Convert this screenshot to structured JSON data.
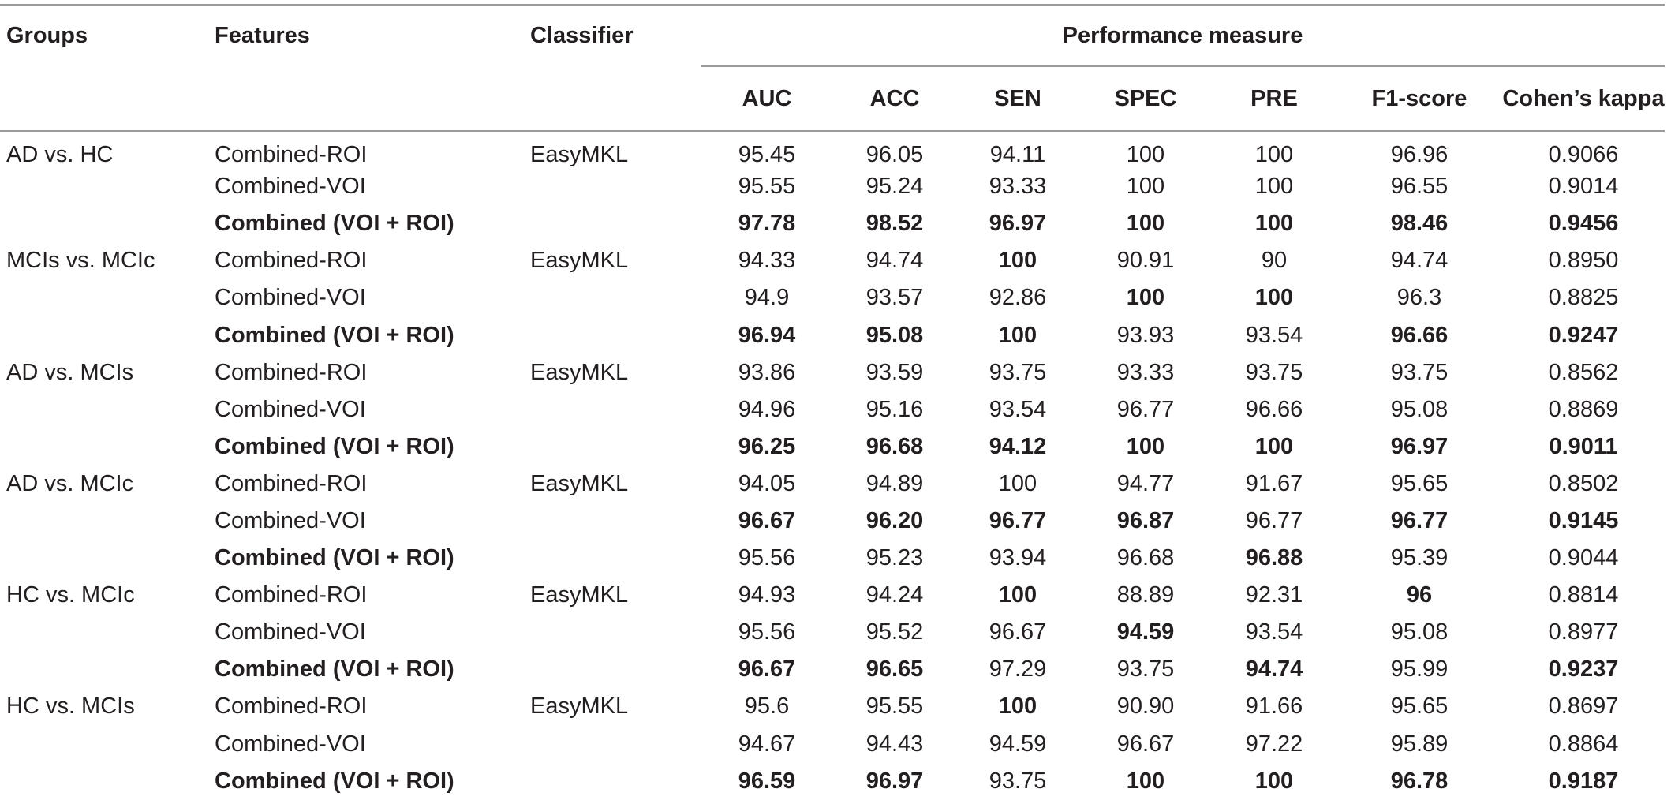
{
  "headers": {
    "groups": "Groups",
    "features": "Features",
    "classifier": "Classifier",
    "performance": "Performance measure",
    "metrics": [
      "AUC",
      "ACC",
      "SEN",
      "SPEC",
      "PRE",
      "F1-score",
      "Cohen’s kappa"
    ]
  },
  "rows": [
    {
      "group": "AD vs. HC",
      "feature": "Combined-ROI",
      "classifier": "EasyMKL",
      "fbold": false,
      "values": [
        "95.45",
        "96.05",
        "94.11",
        "100",
        "100",
        "96.96",
        "0.9066"
      ],
      "bold": [
        false,
        false,
        false,
        false,
        false,
        false,
        false
      ]
    },
    {
      "group": "",
      "feature": "Combined-VOI",
      "classifier": "",
      "fbold": false,
      "values": [
        "95.55",
        "95.24",
        "93.33",
        "100",
        "100",
        "96.55",
        "0.9014"
      ],
      "bold": [
        false,
        false,
        false,
        false,
        false,
        false,
        false
      ]
    },
    {
      "group": "",
      "feature": "Combined (VOI + ROI)",
      "classifier": "",
      "fbold": true,
      "values": [
        "97.78",
        "98.52",
        "96.97",
        "100",
        "100",
        "98.46",
        "0.9456"
      ],
      "bold": [
        true,
        true,
        true,
        true,
        true,
        true,
        true
      ]
    },
    {
      "group": "MCIs vs. MCIc",
      "feature": "Combined-ROI",
      "classifier": "EasyMKL",
      "fbold": false,
      "values": [
        "94.33",
        "94.74",
        "100",
        "90.91",
        "90",
        "94.74",
        "0.8950"
      ],
      "bold": [
        false,
        false,
        true,
        false,
        false,
        false,
        false
      ]
    },
    {
      "group": "",
      "feature": "Combined-VOI",
      "classifier": "",
      "fbold": false,
      "values": [
        "94.9",
        "93.57",
        "92.86",
        "100",
        "100",
        "96.3",
        "0.8825"
      ],
      "bold": [
        false,
        false,
        false,
        true,
        true,
        false,
        false
      ]
    },
    {
      "group": "",
      "feature": "Combined (VOI + ROI)",
      "classifier": "",
      "fbold": true,
      "values": [
        "96.94",
        "95.08",
        "100",
        "93.93",
        "93.54",
        "96.66",
        "0.9247"
      ],
      "bold": [
        true,
        true,
        true,
        false,
        false,
        true,
        true
      ]
    },
    {
      "group": "AD vs. MCIs",
      "feature": "Combined-ROI",
      "classifier": "EasyMKL",
      "fbold": false,
      "values": [
        "93.86",
        "93.59",
        "93.75",
        "93.33",
        "93.75",
        "93.75",
        "0.8562"
      ],
      "bold": [
        false,
        false,
        false,
        false,
        false,
        false,
        false
      ]
    },
    {
      "group": "",
      "feature": "Combined-VOI",
      "classifier": "",
      "fbold": false,
      "values": [
        "94.96",
        "95.16",
        "93.54",
        "96.77",
        "96.66",
        "95.08",
        "0.8869"
      ],
      "bold": [
        false,
        false,
        false,
        false,
        false,
        false,
        false
      ]
    },
    {
      "group": "",
      "feature": "Combined (VOI + ROI)",
      "classifier": "",
      "fbold": true,
      "values": [
        "96.25",
        "96.68",
        "94.12",
        "100",
        "100",
        "96.97",
        "0.9011"
      ],
      "bold": [
        true,
        true,
        true,
        true,
        true,
        true,
        true
      ]
    },
    {
      "group": "AD vs. MCIc",
      "feature": "Combined-ROI",
      "classifier": "EasyMKL",
      "fbold": false,
      "values": [
        "94.05",
        "94.89",
        "100",
        "94.77",
        "91.67",
        "95.65",
        "0.8502"
      ],
      "bold": [
        false,
        false,
        false,
        false,
        false,
        false,
        false
      ]
    },
    {
      "group": "",
      "feature": "Combined-VOI",
      "classifier": "",
      "fbold": false,
      "values": [
        "96.67",
        "96.20",
        "96.77",
        "96.87",
        "96.77",
        "96.77",
        "0.9145"
      ],
      "bold": [
        true,
        true,
        true,
        true,
        false,
        true,
        true
      ]
    },
    {
      "group": "",
      "feature": "Combined (VOI + ROI)",
      "classifier": "",
      "fbold": true,
      "values": [
        "95.56",
        "95.23",
        "93.94",
        "96.68",
        "96.88",
        "95.39",
        "0.9044"
      ],
      "bold": [
        false,
        false,
        false,
        false,
        true,
        false,
        false
      ]
    },
    {
      "group": "HC vs. MCIc",
      "feature": "Combined-ROI",
      "classifier": "EasyMKL",
      "fbold": false,
      "values": [
        "94.93",
        "94.24",
        "100",
        "88.89",
        "92.31",
        "96",
        "0.8814"
      ],
      "bold": [
        false,
        false,
        true,
        false,
        false,
        true,
        false
      ]
    },
    {
      "group": "",
      "feature": "Combined-VOI",
      "classifier": "",
      "fbold": false,
      "values": [
        "95.56",
        "95.52",
        "96.67",
        "94.59",
        "93.54",
        "95.08",
        "0.8977"
      ],
      "bold": [
        false,
        false,
        false,
        true,
        false,
        false,
        false
      ]
    },
    {
      "group": "",
      "feature": "Combined (VOI + ROI)",
      "classifier": "",
      "fbold": true,
      "values": [
        "96.67",
        "96.65",
        "97.29",
        "93.75",
        "94.74",
        "95.99",
        "0.9237"
      ],
      "bold": [
        true,
        true,
        false,
        false,
        true,
        false,
        true
      ]
    },
    {
      "group": "HC vs. MCIs",
      "feature": "Combined-ROI",
      "classifier": "EasyMKL",
      "fbold": false,
      "values": [
        "95.6",
        "95.55",
        "100",
        "90.90",
        "91.66",
        "95.65",
        "0.8697"
      ],
      "bold": [
        false,
        false,
        true,
        false,
        false,
        false,
        false
      ]
    },
    {
      "group": "",
      "feature": "Combined-VOI",
      "classifier": "",
      "fbold": false,
      "values": [
        "94.67",
        "94.43",
        "94.59",
        "96.67",
        "97.22",
        "95.89",
        "0.8864"
      ],
      "bold": [
        false,
        false,
        false,
        false,
        false,
        false,
        false
      ]
    },
    {
      "group": "",
      "feature": "Combined (VOI + ROI)",
      "classifier": "",
      "fbold": true,
      "values": [
        "96.59",
        "96.97",
        "93.75",
        "100",
        "100",
        "96.78",
        "0.9187"
      ],
      "bold": [
        true,
        true,
        false,
        true,
        true,
        true,
        true
      ]
    }
  ]
}
